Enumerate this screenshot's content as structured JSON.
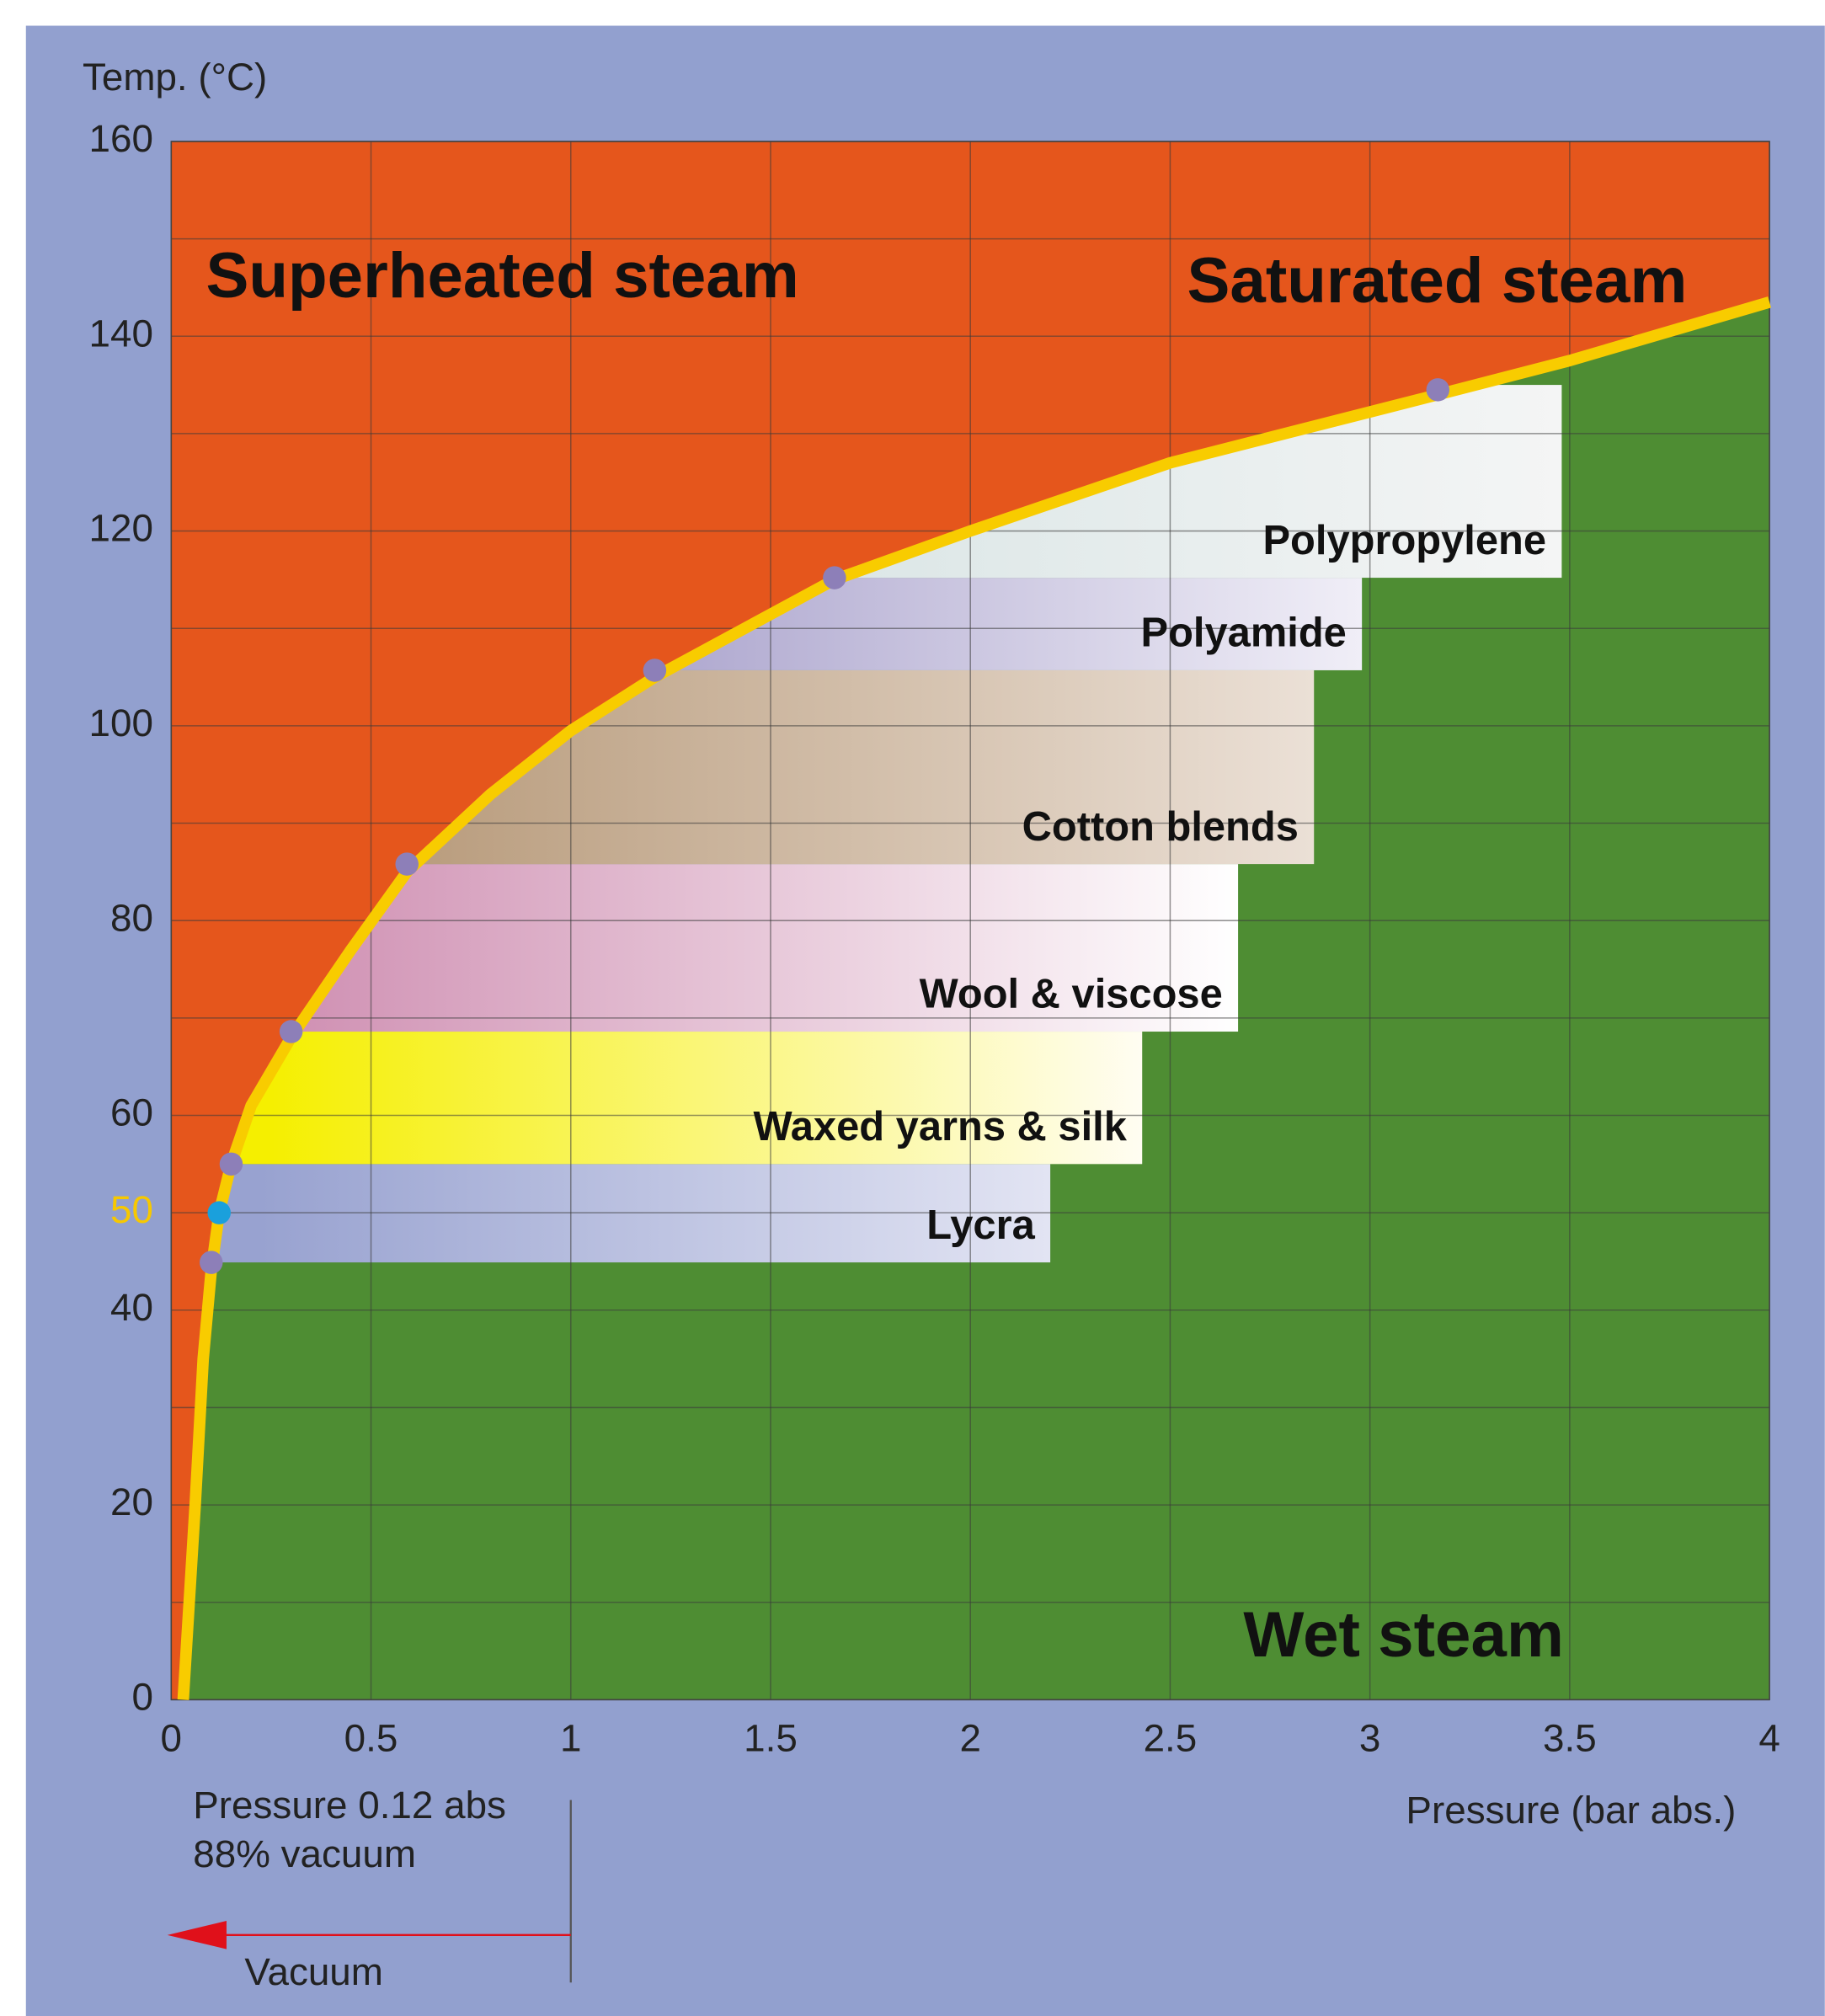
{
  "chart_data": {
    "type": "steam-regions",
    "y_label": "Temp. (°C)",
    "x_label": "Pressure (bar abs.)",
    "xlim": [
      0,
      4
    ],
    "ylim": [
      0,
      160
    ],
    "xticks": [
      0,
      0.5,
      1,
      1.5,
      2,
      2.5,
      3,
      3.5,
      4
    ],
    "yticks": [
      0,
      20,
      40,
      50,
      60,
      80,
      100,
      120,
      140,
      160
    ],
    "yminor": [
      10,
      30,
      70,
      90,
      110,
      130,
      150
    ],
    "highlight_ytick": 50,
    "highlight_color": "#f7c800",
    "grid": true,
    "regions": {
      "above": "Superheated steam",
      "curve": "Saturated steam",
      "below": "Wet steam"
    },
    "above_color": "#e5561c",
    "below_color": "#4e8d33",
    "curve": {
      "color": "#f8cc00",
      "x": [
        0.03,
        0.06,
        0.08,
        0.1,
        0.12,
        0.15,
        0.2,
        0.3,
        0.45,
        0.59,
        0.8,
        1.0,
        1.21,
        1.66,
        2,
        2.5,
        3.17,
        3.5,
        4
      ],
      "y": [
        0,
        20,
        35,
        44,
        50,
        55,
        61,
        68,
        77,
        85,
        93,
        99.5,
        105,
        115,
        120,
        127,
        134,
        137.5,
        143.5
      ]
    },
    "bands": [
      {
        "name": "Lycra",
        "low": 44.9,
        "high": 55,
        "right": 2.2,
        "colors": [
          "#98a2d0",
          "#e2e4f3"
        ]
      },
      {
        "name": "Waxed yarns & silk",
        "low": 55,
        "high": 68.6,
        "right": 2.43,
        "colors": [
          "#f5ef00",
          "#fffdf2"
        ]
      },
      {
        "name": "Wool & viscose",
        "low": 68.6,
        "high": 85.8,
        "right": 2.67,
        "colors": [
          "#cf8fb2",
          "#ffffff"
        ]
      },
      {
        "name": "Cotton blends",
        "low": 85.8,
        "high": 105.7,
        "right": 2.86,
        "colors": [
          "#b29371",
          "#ebe0d6"
        ]
      },
      {
        "name": "Polyamide",
        "low": 105.7,
        "high": 115.2,
        "right": 2.98,
        "colors": [
          "#8c83ba",
          "#f0eef7"
        ]
      },
      {
        "name": "Polypropylene",
        "low": 115.2,
        "high": 135,
        "right": 3.48,
        "colors": [
          "#cadcdc",
          "#f4f5f5"
        ]
      }
    ],
    "markers": {
      "x": [
        0.1,
        0.12,
        0.15,
        0.3,
        0.59,
        1.21,
        1.66,
        3.17
      ],
      "y": [
        44.9,
        50,
        55,
        68.6,
        85.8,
        105.7,
        115.2,
        134.5
      ],
      "colors": [
        "#8d7fb8",
        "#1aa0dc",
        "#8d7fb8",
        "#8d7fb8",
        "#8d7fb8",
        "#8d7fb8",
        "#8d7fb8",
        "#8d7fb8"
      ]
    },
    "annotations": [
      "Pressure 0.12 abs",
      "88% vacuum",
      "Vacuum"
    ],
    "annotation_x": 1,
    "arrow_color": "#e0101a"
  }
}
